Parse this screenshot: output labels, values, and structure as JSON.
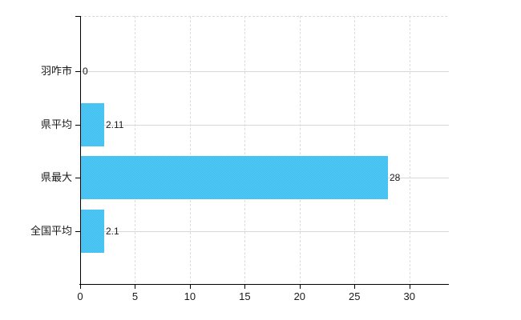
{
  "chart_data": {
    "type": "bar",
    "orientation": "horizontal",
    "title": "",
    "xlabel": "",
    "ylabel": "",
    "categories": [
      "羽咋市",
      "県平均",
      "県最大",
      "全国平均"
    ],
    "values": [
      0,
      2.11,
      28,
      2.1
    ],
    "value_labels": [
      "0",
      "2.11",
      "28",
      "2.1"
    ],
    "x_ticks": [
      0,
      5,
      10,
      15,
      20,
      25,
      30
    ],
    "x_tick_labels": [
      "0",
      "5",
      "10",
      "15",
      "20",
      "25",
      "30"
    ],
    "xlim": [
      0,
      33.6
    ],
    "grid": true,
    "legend": "none",
    "bar_color": "#47c3f1",
    "bar_color_alt": "#55c9f3",
    "grid_color_h": "#d6dad6",
    "grid_color_v": "#dcdcdc",
    "axis_color": "#000000",
    "text_color": "#1a1a1a",
    "background": "#ffffff"
  }
}
